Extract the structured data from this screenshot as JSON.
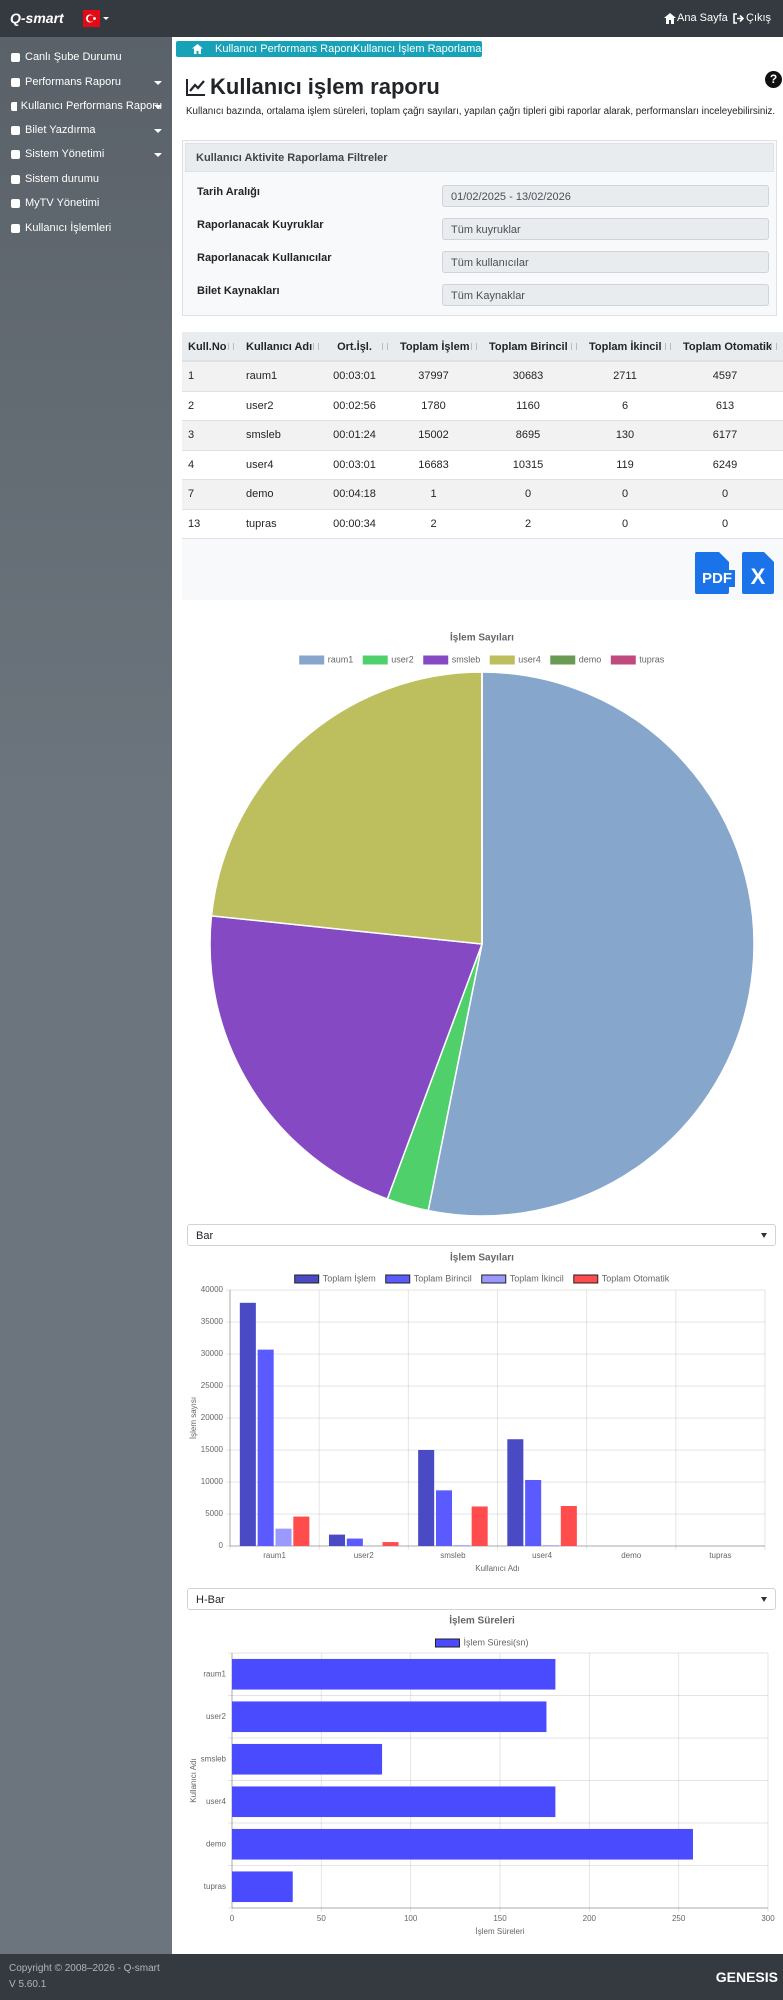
{
  "navbar": {
    "brand": "Q-smart",
    "home": "Ana Sayfa",
    "logout": "Çıkış"
  },
  "sidebar": {
    "items": [
      "Canlı Şube Durumu",
      "Performans Raporu",
      "Kullanıcı Performans Raporu",
      "Bilet Yazdırma",
      "Sistem Yönetimi",
      "Sistem durumu",
      "MyTV Yönetimi",
      "Kullanıcı İşlemleri"
    ],
    "dropdown": [
      false,
      true,
      true,
      true,
      true,
      false,
      false,
      false
    ]
  },
  "breadcrumb": [
    "Kullanıcı Performans Raporu",
    "Kullanıcı İşlem Raporlama"
  ],
  "header": {
    "title": "Kullanıcı işlem raporu",
    "description": "Kullanıcı bazında, ortalama işlem süreleri, toplam çağrı sayıları, yapılan çağrı tipleri gibi raporlar alarak, performansları inceleyebilirsiniz.",
    "help": "?"
  },
  "filters": {
    "title": "Kullanıcı Aktivite Raporlama Filtreler",
    "fields": [
      {
        "label": "Tarih Aralığı",
        "value": "01/02/2025 - 13/02/2026"
      },
      {
        "label": "Raporlanacak Kuyruklar",
        "value": "Tüm kuyruklar"
      },
      {
        "label": "Raporlanacak Kullanıcılar",
        "value": "Tüm kullanıcılar"
      },
      {
        "label": "Bilet Kaynakları",
        "value": "Tüm Kaynaklar"
      }
    ]
  },
  "table": {
    "columns": [
      "Kull.No",
      "Kullanıcı Adı",
      "Ort.İşl.",
      "Toplam İşlem",
      "Toplam Birincil",
      "Toplam İkincil",
      "Toplam Otomatik"
    ],
    "rows": [
      [
        "1",
        "raum1",
        "00:03:01",
        "37997",
        "30683",
        "2711",
        "4597"
      ],
      [
        "2",
        "user2",
        "00:02:56",
        "1780",
        "1160",
        "6",
        "613"
      ],
      [
        "3",
        "smsleb",
        "00:01:24",
        "15002",
        "8695",
        "130",
        "6177"
      ],
      [
        "4",
        "user4",
        "00:03:01",
        "16683",
        "10315",
        "119",
        "6249"
      ],
      [
        "7",
        "demo",
        "00:04:18",
        "1",
        "0",
        "0",
        "0"
      ],
      [
        "13",
        "tupras",
        "00:00:34",
        "2",
        "2",
        "0",
        "0"
      ]
    ]
  },
  "export": [
    "PDF",
    "X"
  ],
  "selects": [
    "Bar",
    "H-Bar"
  ],
  "chart_data": [
    {
      "type": "pie",
      "title": "İşlem Sayıları",
      "categories": [
        "raum1",
        "user2",
        "smsleb",
        "user4",
        "demo",
        "tupras"
      ],
      "values": [
        37997,
        1780,
        15002,
        16683,
        1,
        2
      ],
      "colors": [
        "#86a6cc",
        "#4fd06a",
        "#8549c4",
        "#bdbe5e",
        "#6b9a55",
        "#c0497d"
      ]
    },
    {
      "type": "bar",
      "title": "İşlem Sayıları",
      "categories": [
        "raum1",
        "user2",
        "smsleb",
        "user4",
        "demo",
        "tupras"
      ],
      "series": [
        {
          "name": "Toplam İşlem",
          "color": "#4a4ac4",
          "values": [
            37997,
            1780,
            15002,
            16683,
            1,
            2
          ]
        },
        {
          "name": "Toplam Birincil",
          "color": "#5a5aff",
          "values": [
            30683,
            1160,
            8695,
            10315,
            0,
            2
          ]
        },
        {
          "name": "Toplam İkincil",
          "color": "#9999ff",
          "values": [
            2711,
            6,
            130,
            119,
            0,
            0
          ]
        },
        {
          "name": "Toplam Otomatik",
          "color": "#ff4d4d",
          "values": [
            4597,
            613,
            6177,
            6249,
            0,
            0
          ]
        }
      ],
      "ylim": [
        0,
        40000
      ],
      "yticks": [
        0,
        5000,
        10000,
        15000,
        20000,
        25000,
        30000,
        35000,
        40000
      ],
      "ylabel": "İşlem sayısı",
      "xlabel": "Kullanıcı Adı",
      "grid": true
    },
    {
      "type": "hbar",
      "title": "İşlem Süreleri",
      "categories": [
        "raum1",
        "user2",
        "smsleb",
        "user4",
        "demo",
        "tupras"
      ],
      "series": [
        {
          "name": "İşlem Süresi(sn)",
          "color": "#4a4aff",
          "values": [
            181,
            176,
            84,
            181,
            258,
            34
          ]
        }
      ],
      "xlim": [
        0,
        300
      ],
      "xticks": [
        0,
        50,
        100,
        150,
        200,
        250,
        300
      ],
      "xlabel": "İşlem Süreleri",
      "ylabel": "Kullanıcı Adı",
      "grid": true
    }
  ],
  "footer": {
    "copyright": "Copyright © 2008–2026 - Q-smart",
    "version": "V 5.60.1",
    "brand": "GENESIS"
  }
}
